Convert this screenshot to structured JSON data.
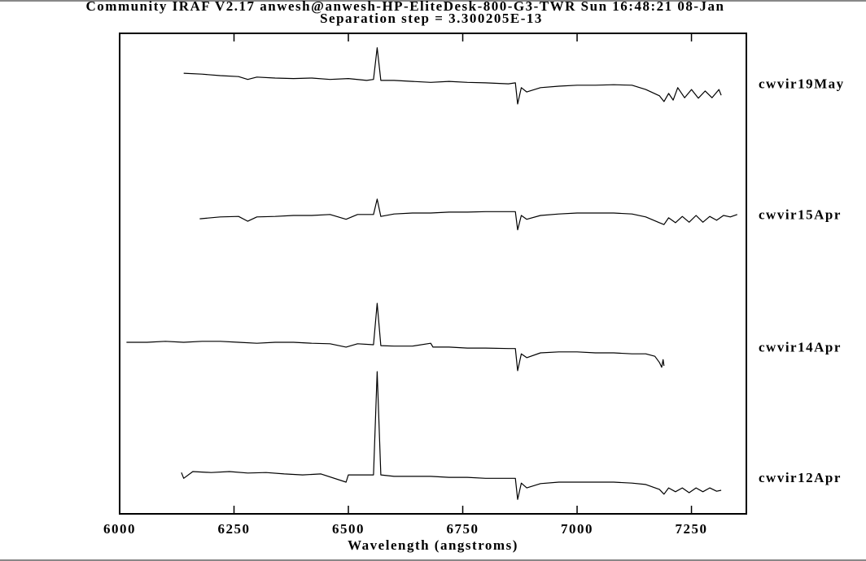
{
  "chart_data": {
    "type": "line",
    "title": "Community IRAF V2.17 anwesh@anwesh-HP-EliteDesk-800-G3-TWR Sun 16:48:21 08-Jan",
    "subtitle": "Separation step = 3.300205E-13",
    "x_label": "Wavelength (angstroms)",
    "xlim": [
      6000,
      7370
    ],
    "ylim": [
      0,
      100
    ],
    "xticks": [
      6000,
      6250,
      6500,
      6750,
      7000,
      7250
    ],
    "color": "#000000",
    "series": [
      {
        "name": "cwvir19May",
        "color": "#000000",
        "x": [
          6140,
          6180,
          6220,
          6260,
          6280,
          6300,
          6340,
          6380,
          6420,
          6460,
          6500,
          6540,
          6555,
          6563,
          6571,
          6600,
          6640,
          6680,
          6720,
          6760,
          6800,
          6850,
          6865,
          6870,
          6878,
          6890,
          6920,
          6960,
          7000,
          7040,
          7080,
          7120,
          7150,
          7180,
          7190,
          7200,
          7210,
          7220,
          7235,
          7250,
          7265,
          7280,
          7295,
          7310,
          7315
        ],
        "values": [
          91.7,
          91.5,
          91.2,
          91.0,
          90.4,
          90.9,
          90.7,
          90.6,
          90.7,
          90.4,
          90.6,
          90.2,
          90.4,
          97.0,
          90.2,
          90.2,
          90.0,
          89.8,
          90.0,
          89.8,
          89.7,
          89.5,
          89.7,
          85.3,
          88.7,
          87.8,
          88.7,
          89.0,
          89.2,
          89.2,
          89.3,
          89.2,
          88.3,
          87.0,
          85.8,
          87.5,
          86.1,
          88.7,
          86.6,
          88.3,
          86.5,
          88.0,
          86.6,
          88.3,
          87.1
        ]
      },
      {
        "name": "cwvir15Apr",
        "color": "#000000",
        "x": [
          6175,
          6220,
          6260,
          6280,
          6300,
          6340,
          6380,
          6420,
          6460,
          6495,
          6520,
          6555,
          6563,
          6571,
          6600,
          6640,
          6680,
          6720,
          6760,
          6800,
          6850,
          6865,
          6870,
          6878,
          6890,
          6920,
          6960,
          7000,
          7040,
          7080,
          7120,
          7150,
          7180,
          7190,
          7200,
          7215,
          7230,
          7245,
          7260,
          7275,
          7290,
          7305,
          7320,
          7335,
          7350
        ],
        "values": [
          61.4,
          61.8,
          61.9,
          60.9,
          61.8,
          61.9,
          62.1,
          62.1,
          62.3,
          61.3,
          62.3,
          62.3,
          65.5,
          61.9,
          62.4,
          62.6,
          62.6,
          62.8,
          62.8,
          62.9,
          62.9,
          62.9,
          59.1,
          62.1,
          61.3,
          62.1,
          62.4,
          62.6,
          62.6,
          62.6,
          62.4,
          61.8,
          60.6,
          60.2,
          61.6,
          60.6,
          61.9,
          60.7,
          62.1,
          60.7,
          61.9,
          61.1,
          62.1,
          61.8,
          62.3
        ]
      },
      {
        "name": "cwvir14Apr",
        "color": "#000000",
        "x": [
          6015,
          6060,
          6100,
          6140,
          6180,
          6220,
          6260,
          6300,
          6340,
          6380,
          6420,
          6460,
          6495,
          6520,
          6555,
          6563,
          6571,
          6600,
          6640,
          6680,
          6685,
          6720,
          6760,
          6800,
          6850,
          6865,
          6870,
          6878,
          6890,
          6920,
          6960,
          7000,
          7040,
          7080,
          7120,
          7150,
          7170,
          7180,
          7185,
          7188,
          7190
        ],
        "values": [
          35.7,
          35.7,
          35.9,
          35.7,
          35.9,
          35.9,
          35.7,
          35.5,
          35.7,
          35.7,
          35.5,
          35.4,
          34.7,
          35.4,
          35.2,
          43.8,
          35.0,
          34.9,
          34.9,
          35.5,
          34.7,
          34.7,
          34.5,
          34.5,
          34.4,
          34.4,
          29.8,
          33.3,
          32.5,
          33.5,
          33.7,
          33.7,
          33.5,
          33.5,
          33.3,
          33.3,
          32.8,
          31.5,
          30.5,
          32.1,
          30.8
        ]
      },
      {
        "name": "cwvir12Apr",
        "color": "#000000",
        "x": [
          6135,
          6140,
          6160,
          6200,
          6240,
          6280,
          6320,
          6360,
          6400,
          6440,
          6495,
          6500,
          6540,
          6555,
          6563,
          6571,
          6600,
          6640,
          6680,
          6720,
          6760,
          6800,
          6850,
          6865,
          6870,
          6878,
          6890,
          6920,
          6960,
          7000,
          7040,
          7080,
          7120,
          7150,
          7180,
          7190,
          7200,
          7215,
          7230,
          7245,
          7260,
          7275,
          7290,
          7305,
          7315
        ],
        "values": [
          8.6,
          7.4,
          8.8,
          8.6,
          8.8,
          8.5,
          8.6,
          8.3,
          8.1,
          8.3,
          6.6,
          8.1,
          8.1,
          8.1,
          29.6,
          8.1,
          7.8,
          7.8,
          7.8,
          7.6,
          7.6,
          7.4,
          7.4,
          7.4,
          3.0,
          6.4,
          5.4,
          6.3,
          6.6,
          6.6,
          6.6,
          6.6,
          6.4,
          6.1,
          5.1,
          4.1,
          5.4,
          4.6,
          5.4,
          4.4,
          5.4,
          4.6,
          5.4,
          4.7,
          4.9
        ]
      }
    ]
  }
}
